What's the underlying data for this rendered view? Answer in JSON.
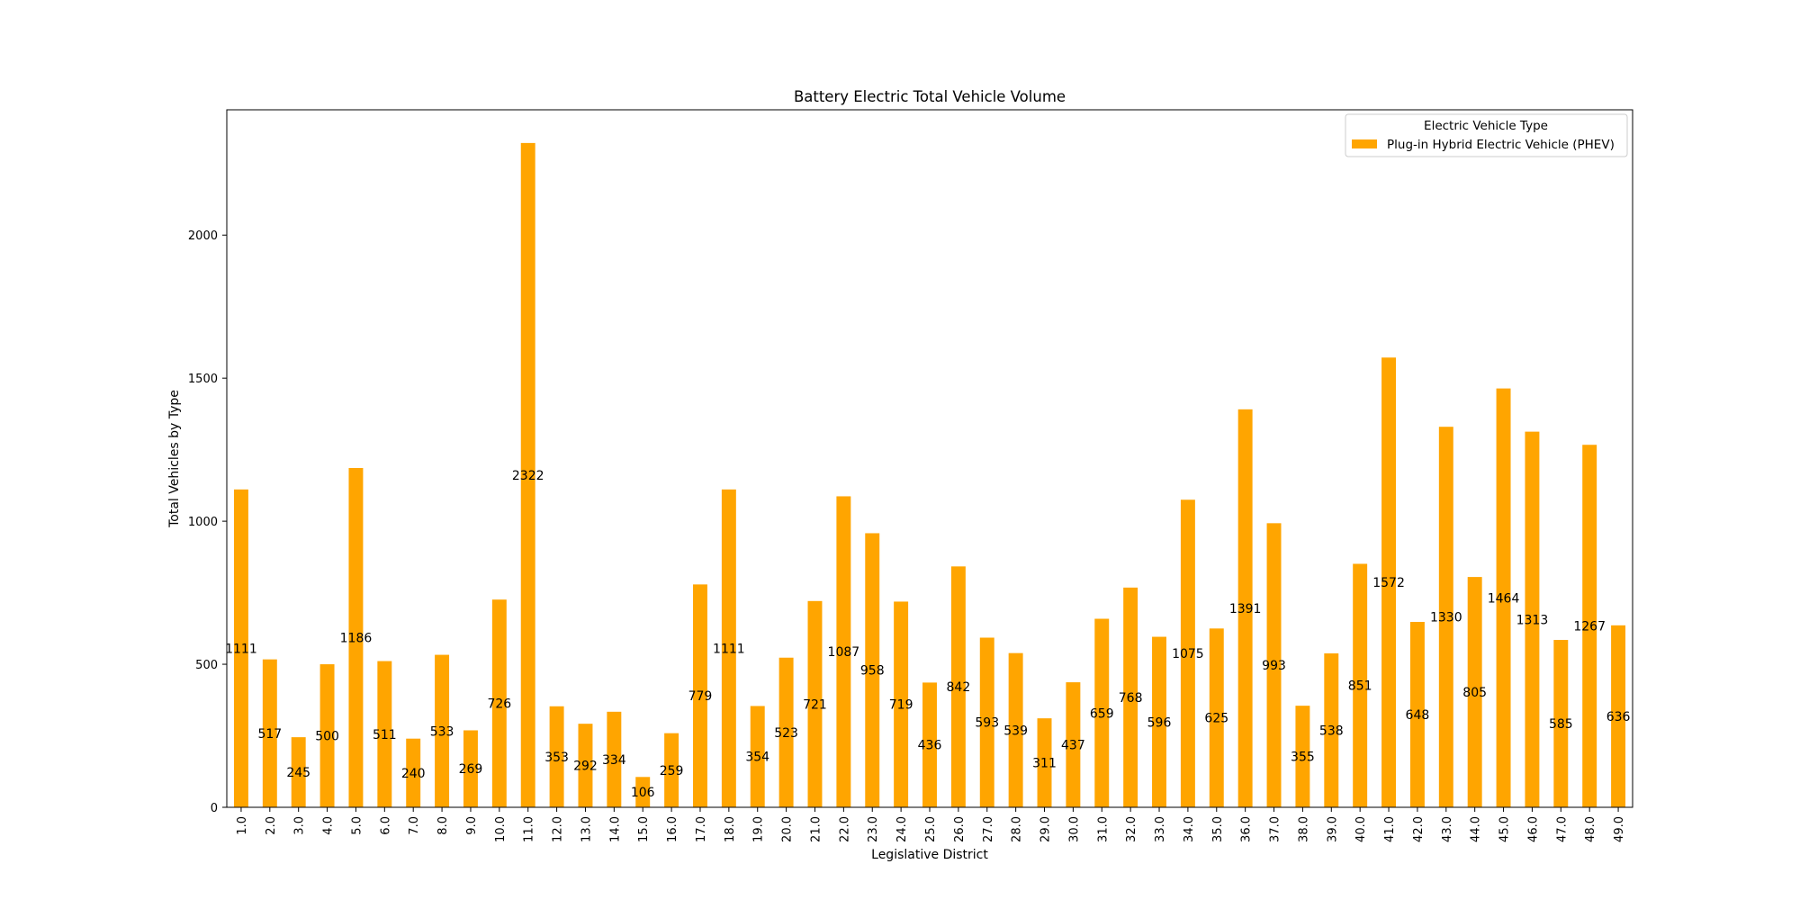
{
  "chart_data": {
    "type": "bar",
    "title": "Battery Electric Total Vehicle Volume",
    "xlabel": "Legislative District",
    "ylabel": "Total Vehicles by Type",
    "ylim": [
      0,
      2438
    ],
    "yticks": [
      0,
      500,
      1000,
      1500,
      2000
    ],
    "grid": false,
    "legend_placement": "top-right",
    "legend_title": "Electric Vehicle Type",
    "bar_color": "#ffa500",
    "categories": [
      "1.0",
      "2.0",
      "3.0",
      "4.0",
      "5.0",
      "6.0",
      "7.0",
      "8.0",
      "9.0",
      "10.0",
      "11.0",
      "12.0",
      "13.0",
      "14.0",
      "15.0",
      "16.0",
      "17.0",
      "18.0",
      "19.0",
      "20.0",
      "21.0",
      "22.0",
      "23.0",
      "24.0",
      "25.0",
      "26.0",
      "27.0",
      "28.0",
      "29.0",
      "30.0",
      "31.0",
      "32.0",
      "33.0",
      "34.0",
      "35.0",
      "36.0",
      "37.0",
      "38.0",
      "39.0",
      "40.0",
      "41.0",
      "42.0",
      "43.0",
      "44.0",
      "45.0",
      "46.0",
      "47.0",
      "48.0",
      "49.0"
    ],
    "series": [
      {
        "name": "Plug-in Hybrid Electric Vehicle (PHEV)",
        "values": [
          1111,
          517,
          245,
          500,
          1186,
          511,
          240,
          533,
          269,
          726,
          2322,
          353,
          292,
          334,
          106,
          259,
          779,
          1111,
          354,
          523,
          721,
          1087,
          958,
          719,
          436,
          842,
          593,
          539,
          311,
          437,
          659,
          768,
          596,
          1075,
          625,
          1391,
          993,
          355,
          538,
          851,
          1572,
          648,
          1330,
          805,
          1464,
          1313,
          585,
          1267,
          636
        ]
      }
    ]
  }
}
